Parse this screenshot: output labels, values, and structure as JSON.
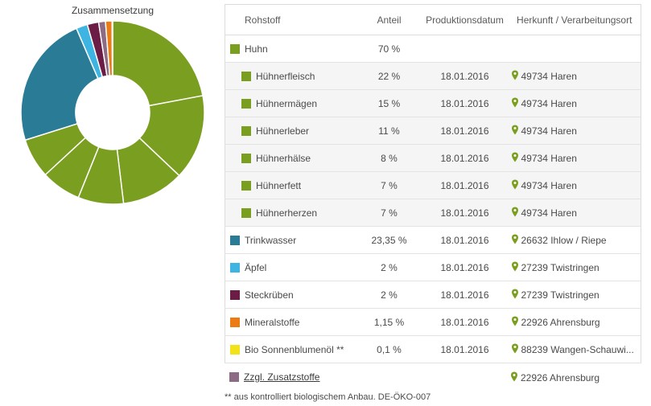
{
  "chart_title": "Zusammensetzung",
  "colors": {
    "huhn": "#7a9e1f",
    "trinkwasser": "#2a7b96",
    "aepfel": "#3eb4e2",
    "steckrueben": "#6b1d45",
    "mineralstoffe": "#ec7b14",
    "sonnenblumenoel": "#f2e21a",
    "zusatzstoffe": "#8e6b85",
    "pin": "#7a9e1f"
  },
  "table": {
    "headers": {
      "name": "Rohstoff",
      "share": "Anteil",
      "date": "Produktionsdatum",
      "origin": "Herkunft / Verarbeitungsort"
    },
    "rows": [
      {
        "name": "Huhn",
        "share": "70 %",
        "date": "",
        "origin": "",
        "color": "#7a9e1f",
        "level": "group"
      },
      {
        "name": "Hühnerfleisch",
        "share": "22 %",
        "date": "18.01.2016",
        "origin": "49734 Haren",
        "color": "#7a9e1f",
        "level": "sub"
      },
      {
        "name": "Hühnermägen",
        "share": "15 %",
        "date": "18.01.2016",
        "origin": "49734 Haren",
        "color": "#7a9e1f",
        "level": "sub"
      },
      {
        "name": "Hühnerleber",
        "share": "11 %",
        "date": "18.01.2016",
        "origin": "49734 Haren",
        "color": "#7a9e1f",
        "level": "sub"
      },
      {
        "name": "Hühnerhälse",
        "share": "8 %",
        "date": "18.01.2016",
        "origin": "49734 Haren",
        "color": "#7a9e1f",
        "level": "sub"
      },
      {
        "name": "Hühnerfett",
        "share": "7 %",
        "date": "18.01.2016",
        "origin": "49734 Haren",
        "color": "#7a9e1f",
        "level": "sub"
      },
      {
        "name": "Hühnerherzen",
        "share": "7 %",
        "date": "18.01.2016",
        "origin": "49734 Haren",
        "color": "#7a9e1f",
        "level": "sub"
      },
      {
        "name": "Trinkwasser",
        "share": "23,35 %",
        "date": "18.01.2016",
        "origin": "26632 Ihlow / Riepe",
        "color": "#2a7b96",
        "level": "top"
      },
      {
        "name": "Äpfel",
        "share": "2 %",
        "date": "18.01.2016",
        "origin": "27239 Twistringen",
        "color": "#3eb4e2",
        "level": "top"
      },
      {
        "name": "Steckrüben",
        "share": "2 %",
        "date": "18.01.2016",
        "origin": "27239 Twistringen",
        "color": "#6b1d45",
        "level": "top"
      },
      {
        "name": "Mineralstoffe",
        "share": "1,15 %",
        "date": "18.01.2016",
        "origin": "22926 Ahrensburg",
        "color": "#ec7b14",
        "level": "top"
      },
      {
        "name": "Bio Sonnenblumenöl **",
        "share": "0,1 %",
        "date": "18.01.2016",
        "origin": "88239 Wangen-Schauwi...",
        "color": "#f2e21a",
        "level": "top"
      }
    ],
    "extra_row": {
      "name": "Zzgl. Zusatzstoffe",
      "origin": "22926 Ahrensburg",
      "color": "#8e6b85"
    }
  },
  "footnote": "** aus kontrolliert biologischem Anbau. DE-ÖKO-007",
  "chart_data": {
    "type": "pie",
    "title": "Zusammensetzung",
    "donut": true,
    "start": "top",
    "direction": "clockwise",
    "slices": [
      {
        "label": "Hühnerfleisch",
        "value": 22,
        "color": "#7a9e1f"
      },
      {
        "label": "Hühnermägen",
        "value": 15,
        "color": "#7a9e1f"
      },
      {
        "label": "Hühnerleber",
        "value": 11,
        "color": "#7a9e1f"
      },
      {
        "label": "Hühnerhälse",
        "value": 8,
        "color": "#7a9e1f"
      },
      {
        "label": "Hühnerfett",
        "value": 7,
        "color": "#7a9e1f"
      },
      {
        "label": "Hühnerherzen",
        "value": 7,
        "color": "#7a9e1f"
      },
      {
        "label": "Trinkwasser",
        "value": 23.35,
        "color": "#2a7b96"
      },
      {
        "label": "Äpfel",
        "value": 2,
        "color": "#3eb4e2"
      },
      {
        "label": "Steckrüben",
        "value": 2,
        "color": "#6b1d45"
      },
      {
        "label": "Zzgl. Zusatzstoffe",
        "value": 1.2,
        "color": "#8e6b85"
      },
      {
        "label": "Mineralstoffe",
        "value": 1.15,
        "color": "#ec7b14"
      },
      {
        "label": "Bio Sonnenblumenöl **",
        "value": 0.1,
        "color": "#f2e21a"
      }
    ]
  }
}
